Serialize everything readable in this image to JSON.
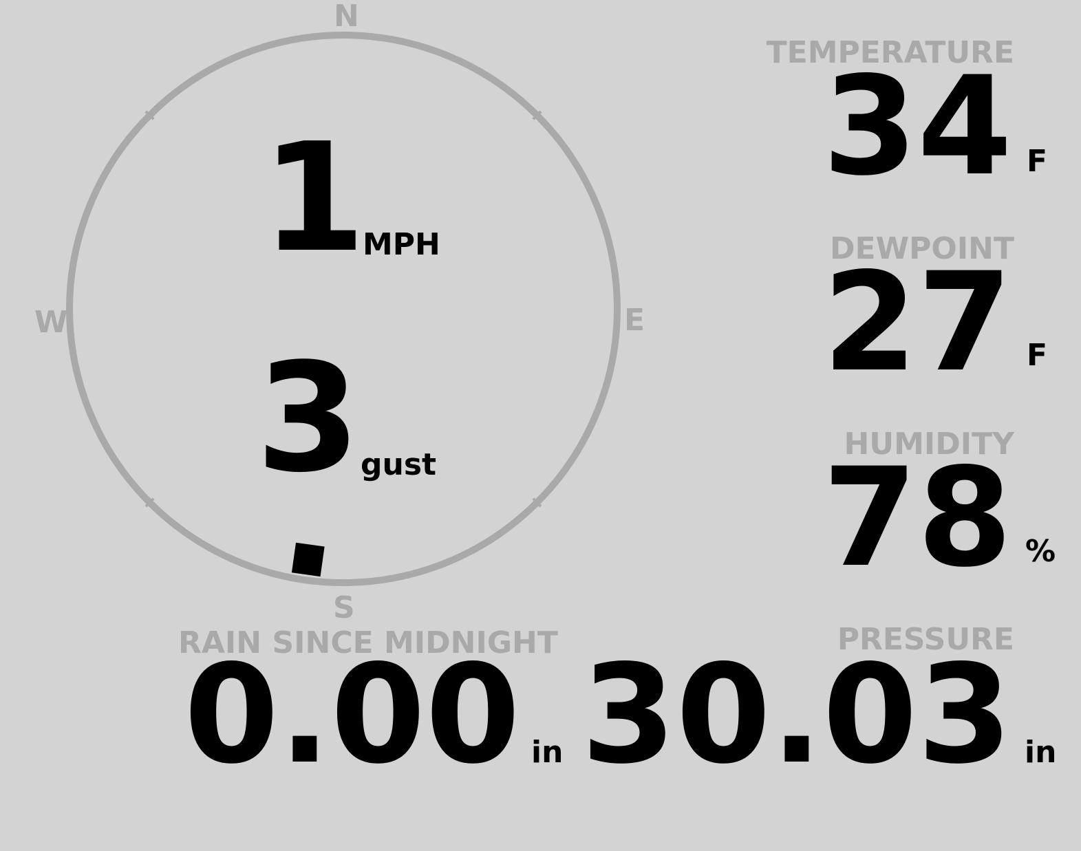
{
  "colors": {
    "background": "#d3d3d3",
    "label": "#a9a9a9",
    "value": "#000000",
    "dial": "#a9a9a9"
  },
  "wind": {
    "compass": {
      "north": "N",
      "east": "E",
      "south": "S",
      "west": "W"
    },
    "speed": "1",
    "speed_unit": "MPH",
    "gust": "3",
    "gust_unit": "gust",
    "direction_degrees": 188
  },
  "temperature": {
    "label": "TEMPERATURE",
    "value": "34",
    "unit": "F"
  },
  "dewpoint": {
    "label": "DEWPOINT",
    "value": "27",
    "unit": "F"
  },
  "humidity": {
    "label": "HUMIDITY",
    "value": "78",
    "unit": "%"
  },
  "rain": {
    "label": "RAIN SINCE MIDNIGHT",
    "value": "0.00",
    "unit": "in"
  },
  "pressure": {
    "label": "PRESSURE",
    "value": "30.03",
    "unit": "in"
  }
}
